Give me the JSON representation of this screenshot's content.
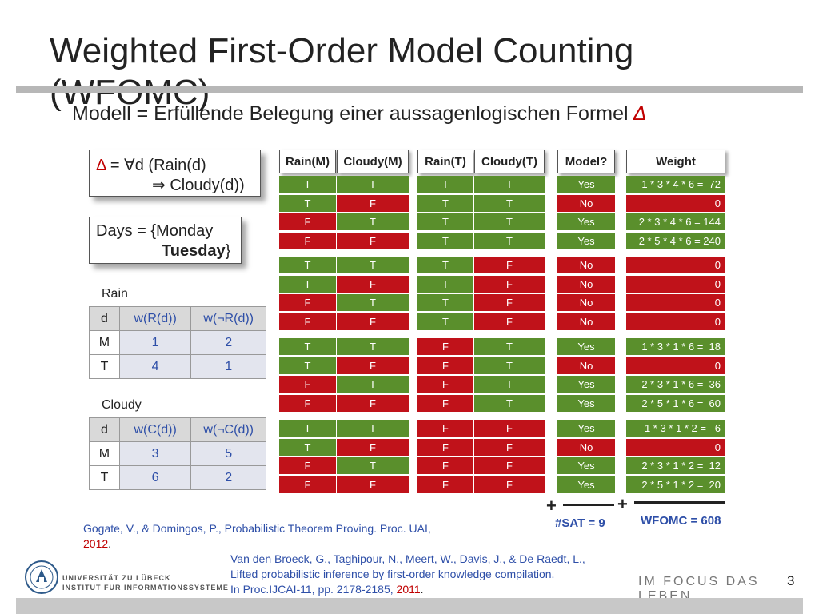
{
  "slide": {
    "title": "Weighted First-Order Model Counting\n(WFOMC)",
    "subtitle": "Modell = Erfüllende Belegung einer aussagenlogischen Formel",
    "subtitle_symbol": "Δ",
    "page_number": "3"
  },
  "formula_box": {
    "delta": "Δ",
    "line1_rest": " = ∀d (Rain(d)",
    "line2": "⇒ Cloudy(d))"
  },
  "days_box": {
    "line1": "Days = {Monday",
    "line2_bold": "Tuesday",
    "line2_end": "}"
  },
  "rain_table": {
    "label": "Rain",
    "headers": {
      "d": "d",
      "w_pos": "w(R(d))",
      "w_neg": "w(¬R(d))"
    },
    "rows": [
      {
        "d": "M",
        "pos": "1",
        "neg": "2"
      },
      {
        "d": "T",
        "pos": "4",
        "neg": "1"
      }
    ]
  },
  "cloudy_table": {
    "label": "Cloudy",
    "headers": {
      "d": "d",
      "w_pos": "w(C(d))",
      "w_neg": "w(¬C(d))"
    },
    "rows": [
      {
        "d": "M",
        "pos": "3",
        "neg": "5"
      },
      {
        "d": "T",
        "pos": "6",
        "neg": "2"
      }
    ]
  },
  "truth_table": {
    "headers": [
      "Rain(M)",
      "Cloudy(M)",
      "Rain(T)",
      "Cloudy(T)",
      "Model?",
      "Weight"
    ],
    "rows": [
      [
        "T",
        "T",
        "T",
        "T",
        "Yes",
        "1 * 3 * 4 * 6 =  72"
      ],
      [
        "T",
        "F",
        "T",
        "T",
        "No",
        "0"
      ],
      [
        "F",
        "T",
        "T",
        "T",
        "Yes",
        "2 * 3 * 4 * 6 = 144"
      ],
      [
        "F",
        "F",
        "T",
        "T",
        "Yes",
        "2 * 5 * 4 * 6 = 240"
      ],
      [
        "T",
        "T",
        "T",
        "F",
        "No",
        "0"
      ],
      [
        "T",
        "F",
        "T",
        "F",
        "No",
        "0"
      ],
      [
        "F",
        "T",
        "T",
        "F",
        "No",
        "0"
      ],
      [
        "F",
        "F",
        "T",
        "F",
        "No",
        "0"
      ],
      [
        "T",
        "T",
        "F",
        "T",
        "Yes",
        "1 * 3 * 1 * 6 =  18"
      ],
      [
        "T",
        "F",
        "F",
        "T",
        "No",
        "0"
      ],
      [
        "F",
        "T",
        "F",
        "T",
        "Yes",
        "2 * 3 * 1 * 6 =  36"
      ],
      [
        "F",
        "F",
        "F",
        "T",
        "Yes",
        "2 * 5 * 1 * 6 =  60"
      ],
      [
        "T",
        "T",
        "F",
        "F",
        "Yes",
        "1 * 3 * 1 * 2 =   6"
      ],
      [
        "T",
        "F",
        "F",
        "F",
        "No",
        "0"
      ],
      [
        "F",
        "T",
        "F",
        "F",
        "Yes",
        "2 * 3 * 1 * 2 =  12"
      ],
      [
        "F",
        "F",
        "F",
        "F",
        "Yes",
        "2 * 5 * 1 * 2 =  20"
      ]
    ]
  },
  "sums": {
    "plus": "+",
    "sat_label": "#SAT = 9",
    "wfomc_label": "WFOMC = 608"
  },
  "references": {
    "ref1_text": "Gogate, V., & Domingos, P., Probabilistic Theorem Proving. Proc. UAI,",
    "ref1_year": "2012",
    "ref1_end": ".",
    "ref2_line1": "Van den Broeck, G., Taghipour, N., Meert, W., Davis, J., & De Raedt, L.,",
    "ref2_line2": "Lifted probabilistic inference by first-order knowledge compilation.",
    "ref2_line3": "In Proc.IJCAI-11, pp. 2178-2185, ",
    "ref2_year": "2011",
    "ref2_end": "."
  },
  "footer": {
    "university_line1": "UNIVERSITÄT ZU LÜBECK",
    "university_line2": "INSTITUT FÜR INFORMATIONSSYSTEME",
    "slogan": "IM FOCUS DAS LEBEN"
  },
  "colors": {
    "true_green": "#5a8f2c",
    "false_red": "#c0121a",
    "link_blue": "#2e4fa8",
    "accent_red": "#c00000"
  }
}
